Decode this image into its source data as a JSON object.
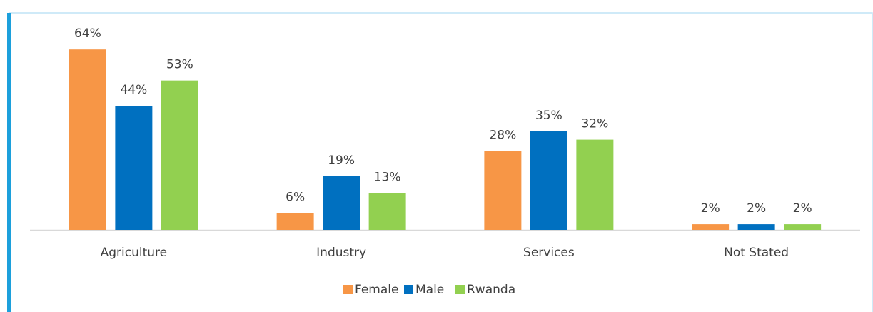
{
  "chart_data": {
    "type": "bar",
    "categories": [
      "Agriculture",
      "Industry",
      "Services",
      "Not Stated"
    ],
    "series": [
      {
        "name": "Female",
        "color": "#f79646",
        "values": [
          64,
          6,
          28,
          2
        ],
        "value_labels": [
          "64%",
          "6%",
          "28%",
          "2%"
        ]
      },
      {
        "name": "Male",
        "color": "#0070c0",
        "values": [
          44,
          19,
          35,
          2
        ],
        "value_labels": [
          "44%",
          "19%",
          "35%",
          "2%"
        ]
      },
      {
        "name": "Rwanda",
        "color": "#92d050",
        "values": [
          53,
          13,
          32,
          2
        ],
        "value_labels": [
          "53%",
          "13%",
          "32%",
          "2%"
        ]
      }
    ],
    "legend": "bottom"
  }
}
